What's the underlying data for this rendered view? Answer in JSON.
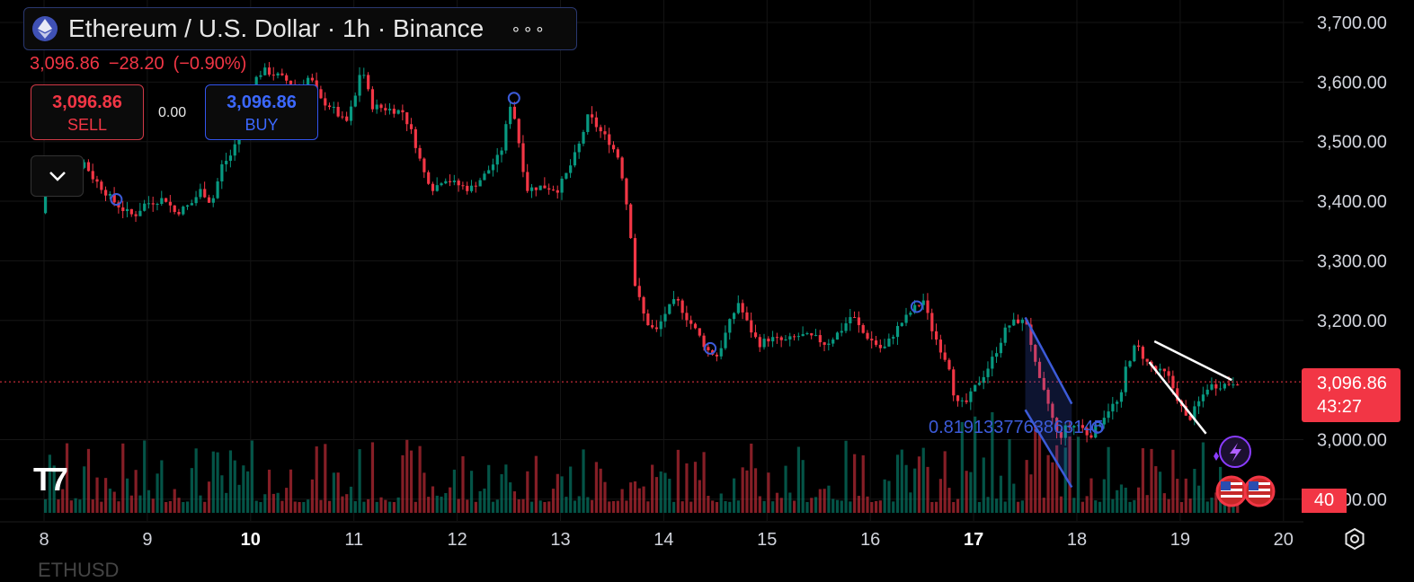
{
  "header": {
    "title": "Ethereum / U.S. Dollar · 1h · Binance",
    "more_label": "∘∘∘",
    "symbol_icon": "ethereum-icon"
  },
  "quote": {
    "last": "3,096.86",
    "change": "−28.20",
    "change_pct": "(−0.90%)"
  },
  "trade": {
    "sell_price": "3,096.86",
    "sell_label": "SELL",
    "spread": "0.00",
    "buy_price": "3,096.86",
    "buy_label": "BUY"
  },
  "price_tag": {
    "price": "3,096.86",
    "countdown": "43:27"
  },
  "volume_tag": "40",
  "pattern_label": "0.8191337763863145",
  "footer_symbol": "ETHUSD",
  "colors": {
    "up": "#089981",
    "down": "#f23645",
    "accent": "#3c5bd9",
    "background": "#000000"
  },
  "chart_data": {
    "type": "candlestick",
    "x_tick_labels": [
      "8",
      "9",
      "10",
      "11",
      "12",
      "13",
      "14",
      "15",
      "16",
      "17",
      "18",
      "19",
      "20"
    ],
    "x_bold_labels": [
      "10",
      "17"
    ],
    "y_tick_labels": [
      "3,700.00",
      "3,600.00",
      "3,500.00",
      "3,400.00",
      "3,300.00",
      "3,200.00",
      "3,000.00",
      "2,900.00"
    ],
    "ylim": [
      2870,
      3720
    ],
    "last_price": 3096.86,
    "close_path": [
      [
        0,
        3380
      ],
      [
        0.1,
        3460
      ],
      [
        0.3,
        3430
      ],
      [
        0.4,
        3470
      ],
      [
        0.5,
        3440
      ],
      [
        0.7,
        3400
      ],
      [
        0.8,
        3385
      ],
      [
        0.9,
        3375
      ],
      [
        1.0,
        3395
      ],
      [
        1.2,
        3405
      ],
      [
        1.3,
        3380
      ],
      [
        1.45,
        3395
      ],
      [
        1.55,
        3420
      ],
      [
        1.65,
        3395
      ],
      [
        1.75,
        3460
      ],
      [
        1.85,
        3480
      ],
      [
        1.95,
        3540
      ],
      [
        2.05,
        3600
      ],
      [
        2.15,
        3620
      ],
      [
        2.3,
        3610
      ],
      [
        2.4,
        3600
      ],
      [
        2.5,
        3590
      ],
      [
        2.6,
        3610
      ],
      [
        2.7,
        3570
      ],
      [
        2.8,
        3560
      ],
      [
        2.95,
        3530
      ],
      [
        3.05,
        3580
      ],
      [
        3.1,
        3630
      ],
      [
        3.2,
        3560
      ],
      [
        3.35,
        3555
      ],
      [
        3.5,
        3550
      ],
      [
        3.6,
        3510
      ],
      [
        3.7,
        3450
      ],
      [
        3.8,
        3420
      ],
      [
        3.9,
        3440
      ],
      [
        4.0,
        3430
      ],
      [
        4.15,
        3420
      ],
      [
        4.3,
        3445
      ],
      [
        4.45,
        3480
      ],
      [
        4.55,
        3570
      ],
      [
        4.6,
        3525
      ],
      [
        4.7,
        3420
      ],
      [
        4.85,
        3425
      ],
      [
        5.0,
        3420
      ],
      [
        5.1,
        3450
      ],
      [
        5.2,
        3490
      ],
      [
        5.3,
        3545
      ],
      [
        5.4,
        3520
      ],
      [
        5.5,
        3500
      ],
      [
        5.6,
        3470
      ],
      [
        5.7,
        3360
      ],
      [
        5.75,
        3260
      ],
      [
        5.85,
        3200
      ],
      [
        5.95,
        3180
      ],
      [
        6.05,
        3215
      ],
      [
        6.15,
        3235
      ],
      [
        6.25,
        3205
      ],
      [
        6.35,
        3180
      ],
      [
        6.45,
        3150
      ],
      [
        6.55,
        3140
      ],
      [
        6.65,
        3190
      ],
      [
        6.75,
        3230
      ],
      [
        6.85,
        3190
      ],
      [
        6.95,
        3160
      ],
      [
        7.05,
        3170
      ],
      [
        7.2,
        3165
      ],
      [
        7.35,
        3175
      ],
      [
        7.5,
        3170
      ],
      [
        7.6,
        3160
      ],
      [
        7.75,
        3185
      ],
      [
        7.85,
        3210
      ],
      [
        7.95,
        3180
      ],
      [
        8.05,
        3165
      ],
      [
        8.15,
        3150
      ],
      [
        8.3,
        3190
      ],
      [
        8.45,
        3220
      ],
      [
        8.55,
        3235
      ],
      [
        8.6,
        3195
      ],
      [
        8.7,
        3155
      ],
      [
        8.8,
        3120
      ],
      [
        8.85,
        3060
      ],
      [
        8.95,
        3060
      ],
      [
        9.05,
        3090
      ],
      [
        9.15,
        3115
      ],
      [
        9.25,
        3150
      ],
      [
        9.35,
        3190
      ],
      [
        9.45,
        3200
      ],
      [
        9.55,
        3195
      ],
      [
        9.6,
        3145
      ],
      [
        9.65,
        3105
      ],
      [
        9.75,
        3060
      ],
      [
        9.85,
        3000
      ],
      [
        9.92,
        3020
      ],
      [
        10.05,
        3025
      ],
      [
        10.15,
        3005
      ],
      [
        10.25,
        3030
      ],
      [
        10.35,
        3055
      ],
      [
        10.45,
        3065
      ],
      [
        10.5,
        3120
      ],
      [
        10.6,
        3160
      ],
      [
        10.7,
        3130
      ],
      [
        10.8,
        3115
      ],
      [
        10.9,
        3110
      ],
      [
        11.0,
        3070
      ],
      [
        11.1,
        3030
      ],
      [
        11.2,
        3060
      ],
      [
        11.3,
        3090
      ],
      [
        11.45,
        3092
      ],
      [
        11.55,
        3097
      ]
    ],
    "markers_x": [
      0.7,
      4.55,
      6.45,
      8.45,
      10.2
    ],
    "pattern_lines": [
      {
        "color": "#3c5bd9",
        "from": [
          9.5,
          3205
        ],
        "to": [
          9.95,
          3060
        ]
      },
      {
        "color": "#3c5bd9",
        "from": [
          9.5,
          3050
        ],
        "to": [
          9.95,
          2920
        ]
      },
      {
        "color": "#ffffff",
        "from": [
          10.75,
          3165
        ],
        "to": [
          11.5,
          3100
        ]
      },
      {
        "color": "#ffffff",
        "from": [
          10.7,
          3130
        ],
        "to": [
          11.25,
          3010
        ]
      }
    ]
  }
}
